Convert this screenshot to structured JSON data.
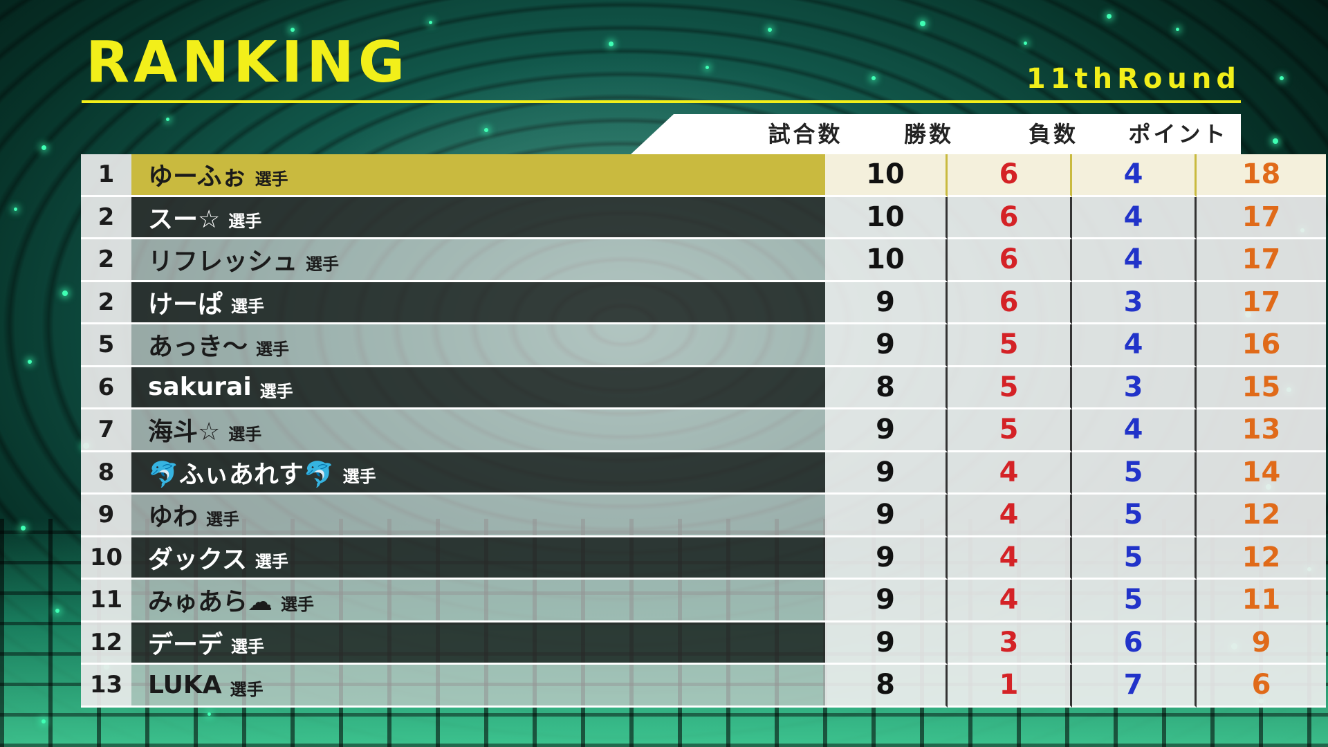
{
  "header": {
    "title": "RANKING",
    "round": "11thRound"
  },
  "columns": {
    "games": "試合数",
    "wins": "勝数",
    "losses": "負数",
    "points": "ポイント"
  },
  "player_suffix": "選手",
  "colors": {
    "title_yellow": "#f2ef1a",
    "wins_red": "#d42226",
    "losses_blue": "#2133c9",
    "points_orange": "#e06a19",
    "first_place_gold": "#c9ba3f"
  },
  "rows": [
    {
      "rank": "1",
      "name": "ゆーふぉ",
      "games": "10",
      "wins": "6",
      "losses": "4",
      "points": "18"
    },
    {
      "rank": "2",
      "name": "スー☆",
      "games": "10",
      "wins": "6",
      "losses": "4",
      "points": "17"
    },
    {
      "rank": "2",
      "name": "リフレッシュ",
      "games": "10",
      "wins": "6",
      "losses": "4",
      "points": "17"
    },
    {
      "rank": "2",
      "name": "けーぱ",
      "games": "9",
      "wins": "6",
      "losses": "3",
      "points": "17"
    },
    {
      "rank": "5",
      "name": "あっき〜",
      "games": "9",
      "wins": "5",
      "losses": "4",
      "points": "16"
    },
    {
      "rank": "6",
      "name": "sakurai",
      "games": "8",
      "wins": "5",
      "losses": "3",
      "points": "15"
    },
    {
      "rank": "7",
      "name": "海斗☆",
      "games": "9",
      "wins": "5",
      "losses": "4",
      "points": "13"
    },
    {
      "rank": "8",
      "name": "🐬ふぃあれす🐬",
      "games": "9",
      "wins": "4",
      "losses": "5",
      "points": "14"
    },
    {
      "rank": "9",
      "name": "ゆわ",
      "games": "9",
      "wins": "4",
      "losses": "5",
      "points": "12"
    },
    {
      "rank": "10",
      "name": "ダックス",
      "games": "9",
      "wins": "4",
      "losses": "5",
      "points": "12"
    },
    {
      "rank": "11",
      "name": "みゅあら☁",
      "games": "9",
      "wins": "4",
      "losses": "5",
      "points": "11"
    },
    {
      "rank": "12",
      "name": "デーデ",
      "games": "9",
      "wins": "3",
      "losses": "6",
      "points": "9"
    },
    {
      "rank": "13",
      "name": "LUKA",
      "games": "8",
      "wins": "1",
      "losses": "7",
      "points": "6"
    }
  ]
}
